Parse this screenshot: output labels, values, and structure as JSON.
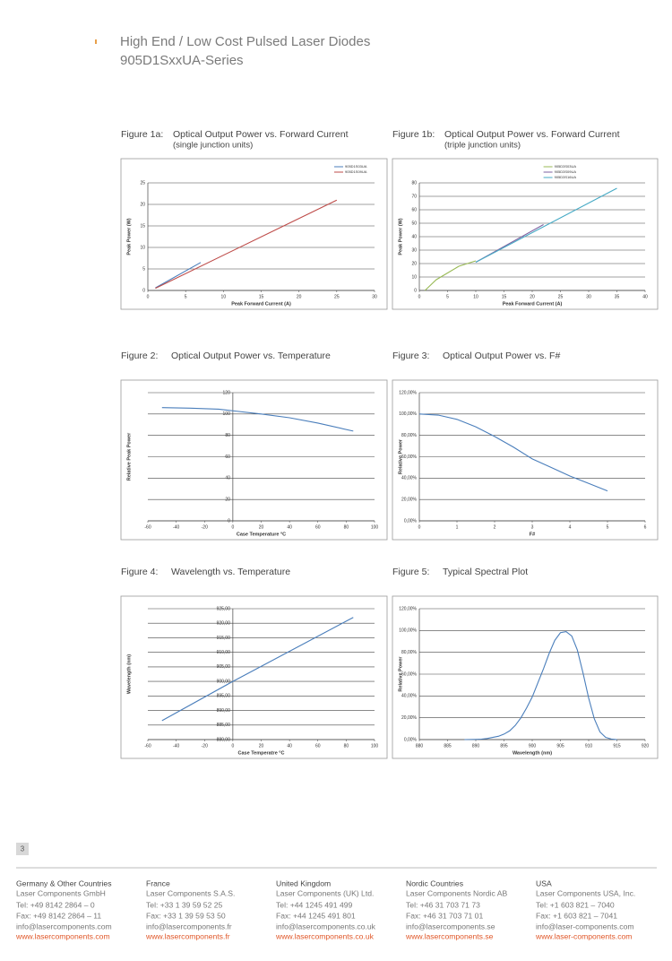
{
  "header": {
    "title": "High End / Low Cost Pulsed Laser Diodes",
    "subtitle": "905D1SxxUA-Series"
  },
  "chart_data": [
    {
      "type": "line",
      "label": "Figure 1a:",
      "title": "Optical Output Power vs. Forward Current",
      "subtitle": "(single junction units)",
      "x_label": "Peak Forward Current (A)",
      "y_label": "Peak Power (W)",
      "xlim": [
        0,
        30
      ],
      "xticks": [
        0,
        5,
        10,
        15,
        20,
        25,
        30
      ],
      "ylim": [
        0,
        25
      ],
      "yticks": [
        0,
        5,
        10,
        15,
        20,
        25
      ],
      "grid": true,
      "legend": "top-right",
      "series": [
        {
          "name": "905D1S03UA",
          "color": "#4a7ebb",
          "x": [
            1,
            7
          ],
          "values": [
            0.6,
            6.5
          ]
        },
        {
          "name": "905D1S09UA",
          "color": "#be4b48",
          "x": [
            1,
            25
          ],
          "values": [
            0.5,
            21
          ]
        }
      ]
    },
    {
      "type": "line",
      "label": "Figure 1b:",
      "title": "Optical Output Power vs. Forward Current",
      "subtitle": "(triple junction units)",
      "x_label": "Peak Forward Current (A)",
      "y_label": "Peak Power (W)",
      "xlim": [
        0,
        40
      ],
      "xticks": [
        0,
        5,
        10,
        15,
        20,
        25,
        30,
        35,
        40
      ],
      "ylim": [
        0,
        80
      ],
      "yticks": [
        0,
        10,
        20,
        30,
        40,
        50,
        60,
        70,
        80
      ],
      "grid": true,
      "legend": "top-left",
      "series": [
        {
          "name": "905D3S03UA",
          "color": "#98b954",
          "x": [
            1,
            2,
            3,
            5,
            7,
            10
          ],
          "values": [
            0,
            4,
            8,
            13,
            18,
            22
          ]
        },
        {
          "name": "905D3S09UA",
          "color": "#7d60a0",
          "x": [
            10,
            22
          ],
          "values": [
            21,
            49
          ]
        },
        {
          "name": "905D3S16UA",
          "color": "#46aac5",
          "x": [
            10,
            35
          ],
          "values": [
            21,
            76
          ]
        }
      ]
    },
    {
      "type": "line",
      "label": "Figure 2:",
      "title": "Optical Output Power vs. Temperature",
      "x_label": "Case Temperature °C",
      "y_label": "Relative Peak Power",
      "xlim": [
        -60,
        100
      ],
      "xticks": [
        -60,
        -40,
        -20,
        0,
        20,
        40,
        60,
        80,
        100
      ],
      "ylim": [
        0,
        120
      ],
      "yticks": [
        0,
        20,
        40,
        60,
        80,
        100,
        120
      ],
      "grid": true,
      "color": "#4a7ebb",
      "x": [
        -50,
        -30,
        -10,
        0,
        20,
        40,
        60,
        85
      ],
      "values": [
        106,
        105.5,
        104.5,
        103,
        100,
        96.5,
        91.5,
        84
      ]
    },
    {
      "type": "line",
      "label": "Figure 3:",
      "title": "Optical Output Power vs. F#",
      "x_label": "F#",
      "y_label": "Relative Power",
      "xlim": [
        0,
        6
      ],
      "xticks": [
        0,
        1,
        2,
        3,
        4,
        5,
        6
      ],
      "ylim": [
        0,
        120
      ],
      "yticks": [
        {
          "value": 0,
          "label": "0,00%"
        },
        {
          "value": 20,
          "label": "20,00%"
        },
        {
          "value": 40,
          "label": "40,00%"
        },
        {
          "value": 60,
          "label": "60,00%"
        },
        {
          "value": 80,
          "label": "80,00%"
        },
        {
          "value": 100,
          "label": "100,00%"
        },
        {
          "value": 120,
          "label": "120,00%"
        }
      ],
      "grid": true,
      "color": "#4a7ebb",
      "x": [
        0,
        0.5,
        1,
        1.5,
        2,
        2.5,
        3,
        3.5,
        4,
        4.5,
        5
      ],
      "values": [
        100,
        99,
        95,
        88,
        79,
        69,
        58,
        50,
        42,
        35,
        28
      ]
    },
    {
      "type": "line",
      "label": "Figure 4:",
      "title": "Wavelength vs. Temperature",
      "x_label": "Case Temperatre °C",
      "y_label": "Wavelength (nm)",
      "xlim": [
        -60,
        100
      ],
      "xticks": [
        -60,
        -40,
        -20,
        0,
        20,
        40,
        60,
        80,
        100
      ],
      "ylim": [
        880,
        925
      ],
      "yticks": [
        {
          "value": 880,
          "label": "880,00"
        },
        {
          "value": 885,
          "label": "885,00"
        },
        {
          "value": 890,
          "label": "890,00"
        },
        {
          "value": 895,
          "label": "895,00"
        },
        {
          "value": 900,
          "label": "900,00"
        },
        {
          "value": 905,
          "label": "905,00"
        },
        {
          "value": 910,
          "label": "910,00"
        },
        {
          "value": 915,
          "label": "915,00"
        },
        {
          "value": 920,
          "label": "920,00"
        },
        {
          "value": 925,
          "label": "925,00"
        }
      ],
      "grid": true,
      "color": "#4a7ebb",
      "x": [
        -50,
        0,
        85
      ],
      "values": [
        886.5,
        900,
        922
      ]
    },
    {
      "type": "line",
      "label": "Figure 5:",
      "title": "Typical Spectral Plot",
      "x_label": "Wavelength (nm)",
      "y_label": "Relative Power",
      "xlim": [
        880,
        920
      ],
      "xticks": [
        880,
        885,
        890,
        895,
        900,
        905,
        910,
        915,
        920
      ],
      "ylim": [
        0,
        120
      ],
      "yticks": [
        {
          "value": 0,
          "label": "0,00%"
        },
        {
          "value": 20,
          "label": "20,00%"
        },
        {
          "value": 40,
          "label": "40,00%"
        },
        {
          "value": 60,
          "label": "60,00%"
        },
        {
          "value": 80,
          "label": "80,00%"
        },
        {
          "value": 100,
          "label": "100,00%"
        },
        {
          "value": 120,
          "label": "120,00%"
        }
      ],
      "grid": true,
      "color": "#4a7ebb",
      "x": [
        888,
        889,
        890,
        891,
        892,
        893,
        894,
        895,
        896,
        897,
        898,
        899,
        900,
        901,
        902,
        903,
        904,
        905,
        906,
        907,
        908,
        909,
        910,
        911,
        912,
        913,
        914,
        915
      ],
      "values": [
        0,
        0.1,
        0.2,
        0.4,
        1,
        2,
        3,
        5,
        8,
        13,
        20,
        29,
        39,
        52,
        65,
        79,
        91,
        98,
        99,
        95,
        82,
        61,
        38,
        19,
        7,
        2,
        0.5,
        0
      ]
    }
  ],
  "page_number": "3",
  "footer": [
    {
      "region": "Germany & Other Countries",
      "company": "Laser Components GmbH",
      "tel": "Tel:   +49 8142 2864 – 0",
      "fax": "Fax:  +49 8142 2864 – 11",
      "email": "info@lasercomponents.com",
      "web": "www.lasercomponents.com"
    },
    {
      "region": "France",
      "company": "Laser Components S.A.S.",
      "tel": "Tel:   +33 1 39 59 52 25",
      "fax": "Fax:  +33 1 39 59 53 50",
      "email": "info@lasercomponents.fr",
      "web": "www.lasercomponents.fr"
    },
    {
      "region": "United Kingdom",
      "company": "Laser Components (UK) Ltd.",
      "tel": "Tel:   +44 1245 491 499",
      "fax": "Fax:  +44 1245 491 801",
      "email": "info@lasercomponents.co.uk",
      "web": "www.lasercomponents.co.uk"
    },
    {
      "region": "Nordic Countries",
      "company": "Laser Components Nordic AB",
      "tel": "Tel:   +46 31 703 71 73",
      "fax": "Fax:  +46 31 703 71 01",
      "email": "info@lasercomponents.se",
      "web": "www.lasercomponents.se"
    },
    {
      "region": "USA",
      "company": "Laser Components USA, Inc.",
      "tel": "Tel:   +1 603 821 – 7040",
      "fax": "Fax:  +1 603 821 – 7041",
      "email": "info@laser-components.com",
      "web": "www.laser-components.com"
    }
  ]
}
